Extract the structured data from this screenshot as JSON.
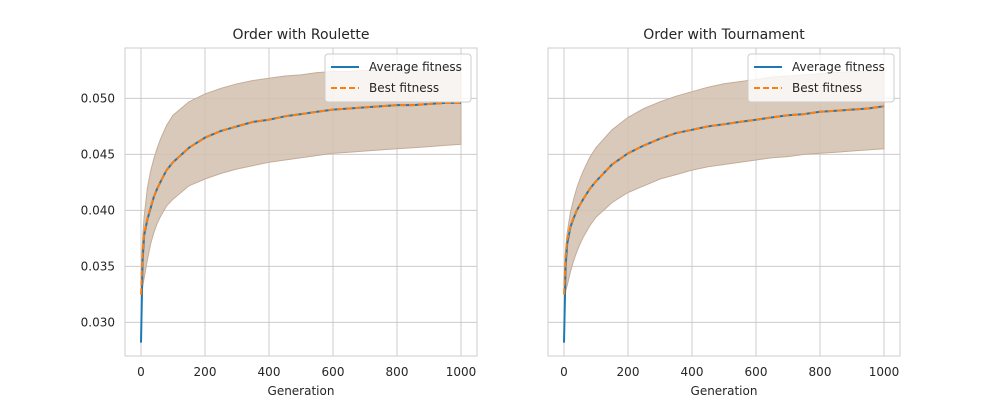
{
  "chart_data": [
    {
      "type": "line",
      "title": "Order with Roulette",
      "xlabel": "Generation",
      "ylabel": "",
      "xlim": [
        -50,
        1050
      ],
      "ylim": [
        0.027,
        0.0545
      ],
      "xticks": [
        0,
        200,
        400,
        600,
        800,
        1000
      ],
      "xtick_labels": [
        "0",
        "200",
        "400",
        "600",
        "800",
        "1000"
      ],
      "yticks": [
        0.03,
        0.035,
        0.04,
        0.045,
        0.05
      ],
      "ytick_labels": [
        "0.030",
        "0.035",
        "0.040",
        "0.045",
        "0.050"
      ],
      "grid": true,
      "legend_position": "top-right",
      "x": [
        0,
        5,
        10,
        20,
        30,
        40,
        50,
        60,
        80,
        100,
        150,
        200,
        250,
        300,
        350,
        400,
        450,
        500,
        550,
        600,
        650,
        700,
        750,
        800,
        850,
        900,
        950,
        1000
      ],
      "band_upper": [
        0.034,
        0.0375,
        0.0395,
        0.042,
        0.0435,
        0.0446,
        0.0455,
        0.0463,
        0.0476,
        0.0485,
        0.0497,
        0.0504,
        0.0509,
        0.0513,
        0.0516,
        0.0518,
        0.052,
        0.0521,
        0.0523,
        0.0524,
        0.0524,
        0.0525,
        0.0525,
        0.0526,
        0.0526,
        0.0526,
        0.0527,
        0.0527
      ],
      "band_lower": [
        0.0325,
        0.0332,
        0.034,
        0.0356,
        0.037,
        0.038,
        0.0388,
        0.0394,
        0.0404,
        0.041,
        0.0422,
        0.0428,
        0.0433,
        0.0437,
        0.044,
        0.0443,
        0.0445,
        0.0447,
        0.0449,
        0.0451,
        0.0452,
        0.0453,
        0.0454,
        0.0455,
        0.0456,
        0.0457,
        0.0458,
        0.0459
      ],
      "series": [
        {
          "name": "Average fitness",
          "color": "#1f77b4",
          "style": "solid",
          "values": [
            0.0282,
            0.0355,
            0.0378,
            0.0392,
            0.0402,
            0.0412,
            0.0419,
            0.0425,
            0.0436,
            0.0443,
            0.0456,
            0.0465,
            0.0471,
            0.0475,
            0.0479,
            0.0481,
            0.0484,
            0.0486,
            0.0488,
            0.049,
            0.0491,
            0.0492,
            0.0493,
            0.0494,
            0.0494,
            0.0495,
            0.0496,
            0.0496
          ]
        },
        {
          "name": "Best fitness",
          "color": "#ff7f0e",
          "style": "dashed",
          "values": [
            0.0325,
            0.0362,
            0.038,
            0.0393,
            0.0403,
            0.0412,
            0.0419,
            0.0425,
            0.0436,
            0.0443,
            0.0456,
            0.0465,
            0.0471,
            0.0475,
            0.0479,
            0.0481,
            0.0484,
            0.0486,
            0.0488,
            0.049,
            0.0491,
            0.0492,
            0.0493,
            0.0494,
            0.0494,
            0.0495,
            0.0496,
            0.0496
          ]
        }
      ]
    },
    {
      "type": "line",
      "title": "Order with Tournament",
      "xlabel": "Generation",
      "ylabel": "",
      "xlim": [
        -50,
        1050
      ],
      "ylim": [
        0.027,
        0.0545
      ],
      "xticks": [
        0,
        200,
        400,
        600,
        800,
        1000
      ],
      "xtick_labels": [
        "0",
        "200",
        "400",
        "600",
        "800",
        "1000"
      ],
      "yticks": [
        0.03,
        0.035,
        0.04,
        0.045,
        0.05
      ],
      "ytick_labels": [],
      "grid": true,
      "legend_position": "top-right",
      "x": [
        0,
        5,
        10,
        20,
        30,
        40,
        50,
        60,
        80,
        100,
        150,
        200,
        250,
        300,
        350,
        400,
        450,
        500,
        550,
        600,
        650,
        700,
        750,
        800,
        850,
        900,
        950,
        1000
      ],
      "band_upper": [
        0.034,
        0.0365,
        0.038,
        0.0398,
        0.041,
        0.042,
        0.0428,
        0.0435,
        0.0447,
        0.0456,
        0.0472,
        0.0483,
        0.0491,
        0.0497,
        0.0502,
        0.0506,
        0.051,
        0.0513,
        0.0515,
        0.0517,
        0.0519,
        0.052,
        0.0521,
        0.0522,
        0.0523,
        0.0524,
        0.0524,
        0.0525
      ],
      "band_lower": [
        0.0325,
        0.0328,
        0.0333,
        0.0345,
        0.0355,
        0.0363,
        0.037,
        0.0376,
        0.0386,
        0.0394,
        0.0407,
        0.0416,
        0.0422,
        0.0428,
        0.0432,
        0.0436,
        0.0439,
        0.0441,
        0.0443,
        0.0445,
        0.0447,
        0.0448,
        0.045,
        0.0451,
        0.0452,
        0.0453,
        0.0454,
        0.0455
      ],
      "series": [
        {
          "name": "Average fitness",
          "color": "#1f77b4",
          "style": "solid",
          "values": [
            0.0282,
            0.035,
            0.037,
            0.0385,
            0.0393,
            0.04,
            0.0405,
            0.041,
            0.0419,
            0.0426,
            0.0441,
            0.0451,
            0.0458,
            0.0464,
            0.0469,
            0.0472,
            0.0475,
            0.0477,
            0.0479,
            0.0481,
            0.0483,
            0.0485,
            0.0486,
            0.0488,
            0.0489,
            0.049,
            0.0491,
            0.0493
          ]
        },
        {
          "name": "Best fitness",
          "color": "#ff7f0e",
          "style": "dashed",
          "values": [
            0.0325,
            0.0358,
            0.0374,
            0.0386,
            0.0394,
            0.04,
            0.0405,
            0.041,
            0.0419,
            0.0426,
            0.0441,
            0.0451,
            0.0458,
            0.0464,
            0.0469,
            0.0472,
            0.0475,
            0.0477,
            0.0479,
            0.0481,
            0.0483,
            0.0485,
            0.0486,
            0.0488,
            0.0489,
            0.049,
            0.0491,
            0.0493
          ]
        }
      ]
    }
  ],
  "colors": {
    "band_fill": "#d2bfae",
    "band_edge": "#c4ac98",
    "grid": "#cccccc",
    "spine": "#cccccc",
    "text": "#262626"
  }
}
